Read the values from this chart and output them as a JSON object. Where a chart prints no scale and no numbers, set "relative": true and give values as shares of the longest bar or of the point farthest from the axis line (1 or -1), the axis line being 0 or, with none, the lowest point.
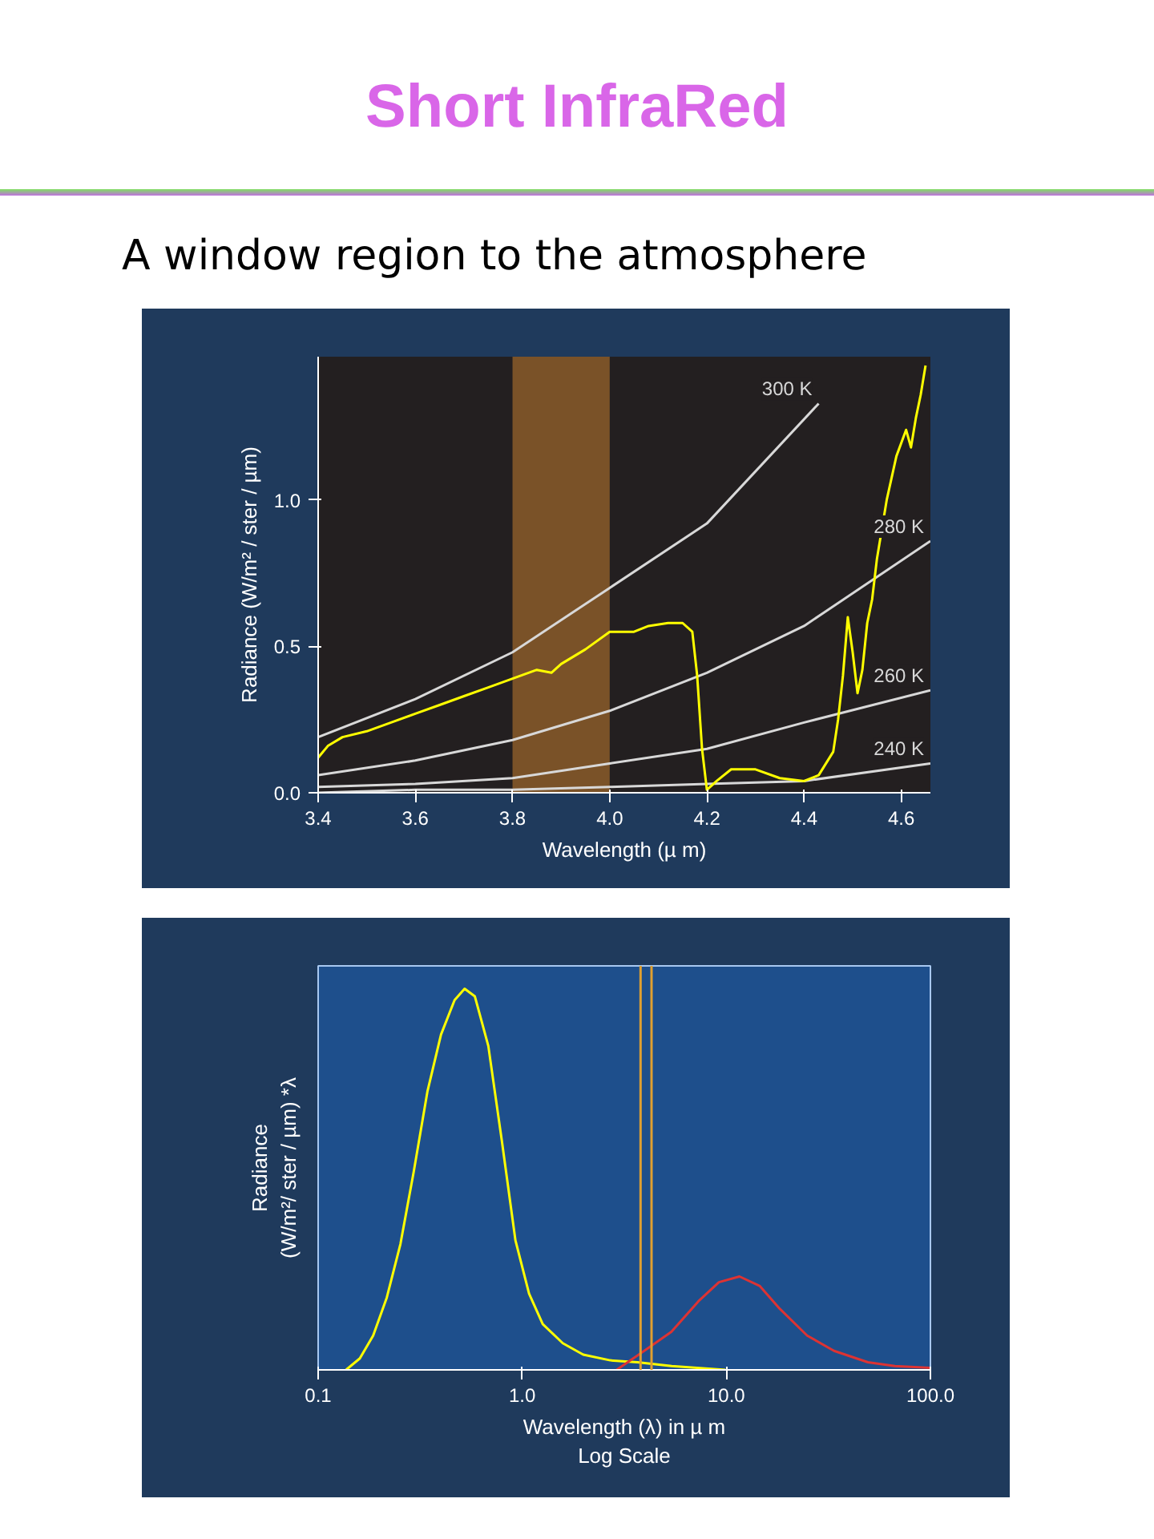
{
  "chart_data": [
    {
      "type": "line",
      "title": "Short InfraRed",
      "subtitle": "A window region to the atmosphere",
      "xlabel": "Wavelength (µ m)",
      "ylabel": "Radiance (W/m² / ster / µm)",
      "xlim": [
        3.4,
        4.66
      ],
      "ylim": [
        0,
        1.49
      ],
      "xticks": [
        3.4,
        3.6,
        3.8,
        {
          "value": 4,
          "label": "4.0"
        },
        4.2,
        4.4,
        4.6
      ],
      "yticks": [
        {
          "value": 0,
          "label": "0.0"
        },
        0.5,
        {
          "value": 1,
          "label": "1.0"
        }
      ],
      "bands": [
        {
          "axis": "x",
          "from": 3.8,
          "to": 4.0,
          "color": "#7a5228"
        }
      ],
      "series": [
        {
          "name": "300 K",
          "color": "#d8d8d8",
          "x": [
            3.4,
            3.6,
            3.8,
            4.0,
            4.2,
            4.43
          ],
          "values": [
            0.19,
            0.32,
            0.48,
            0.7,
            0.92,
            1.33
          ]
        },
        {
          "name": "280 K",
          "color": "#d8d8d8",
          "x": [
            3.4,
            3.6,
            3.8,
            4.0,
            4.2,
            4.4,
            4.66
          ],
          "values": [
            0.06,
            0.11,
            0.18,
            0.28,
            0.41,
            0.57,
            0.86
          ]
        },
        {
          "name": "260 K",
          "color": "#d8d8d8",
          "x": [
            3.4,
            3.6,
            3.8,
            4.0,
            4.2,
            4.4,
            4.66
          ],
          "values": [
            0.02,
            0.03,
            0.05,
            0.1,
            0.15,
            0.24,
            0.35
          ]
        },
        {
          "name": "240 K",
          "color": "#d8d8d8",
          "x": [
            3.4,
            3.6,
            3.8,
            4.0,
            4.2,
            4.4,
            4.66
          ],
          "values": [
            0.0,
            0.01,
            0.01,
            0.02,
            0.03,
            0.04,
            0.1
          ]
        },
        {
          "color": "#ffff00",
          "x": [
            3.4,
            3.42,
            3.45,
            3.5,
            3.55,
            3.6,
            3.65,
            3.7,
            3.75,
            3.8,
            3.85,
            3.88,
            3.9,
            3.95,
            4.0,
            4.05,
            4.08,
            4.12,
            4.15,
            4.17,
            4.18,
            4.19,
            4.2,
            4.22,
            4.25,
            4.3,
            4.35,
            4.4,
            4.43,
            4.46,
            4.47,
            4.48,
            4.49,
            4.5,
            4.51,
            4.52,
            4.53,
            4.54,
            4.55,
            4.57,
            4.59,
            4.61,
            4.62,
            4.63,
            4.64,
            4.65
          ],
          "values": [
            0.12,
            0.16,
            0.19,
            0.21,
            0.24,
            0.27,
            0.3,
            0.33,
            0.36,
            0.39,
            0.42,
            0.41,
            0.44,
            0.49,
            0.55,
            0.55,
            0.57,
            0.58,
            0.58,
            0.55,
            0.4,
            0.15,
            0.01,
            0.04,
            0.08,
            0.08,
            0.05,
            0.04,
            0.06,
            0.14,
            0.25,
            0.4,
            0.6,
            0.48,
            0.34,
            0.42,
            0.58,
            0.66,
            0.8,
            1.0,
            1.15,
            1.24,
            1.18,
            1.28,
            1.36,
            1.46
          ]
        }
      ]
    },
    {
      "type": "line",
      "relative": true,
      "log": "x",
      "xlabel": "Wavelength (λ) in µ m\nLog Scale",
      "ylabel": "Radiance\n(W/m²/ ster / µm) *λ",
      "xlim": [
        0.1,
        100
      ],
      "xticks": [
        {
          "value": 0.1,
          "label": "0.1"
        },
        {
          "value": 1,
          "label": "1.0"
        },
        {
          "value": 10,
          "label": "10.0"
        },
        {
          "value": 100,
          "label": "100.0"
        }
      ],
      "ref_lines": [
        {
          "axis": "x",
          "value": 3.8,
          "color": "#e0a030"
        },
        {
          "axis": "x",
          "value": 4.3,
          "color": "#e0a030"
        }
      ],
      "series": [
        {
          "color": "#ffff00",
          "x": [
            0.137,
            0.16,
            0.186,
            0.217,
            0.253,
            0.294,
            0.343,
            0.4,
            0.466,
            0.522,
            0.586,
            0.682,
            0.795,
            0.926,
            1.08,
            1.26,
            1.58,
            1.99,
            2.7,
            3.67,
            5.4,
            9.9
          ],
          "values": [
            0,
            0.03,
            0.09,
            0.19,
            0.33,
            0.52,
            0.73,
            0.88,
            0.97,
            1.0,
            0.98,
            0.85,
            0.6,
            0.34,
            0.2,
            0.12,
            0.07,
            0.04,
            0.025,
            0.02,
            0.01,
            0
          ]
        },
        {
          "color": "#dd3333",
          "x": [
            2.9,
            3.96,
            5.38,
            7.3,
            9.2,
            11.6,
            14.6,
            18.3,
            24.9,
            33.7,
            49.4,
            67,
            100
          ],
          "values": [
            0,
            0.05,
            0.1,
            0.18,
            0.23,
            0.245,
            0.22,
            0.16,
            0.09,
            0.05,
            0.02,
            0.01,
            0.005
          ]
        }
      ]
    }
  ]
}
